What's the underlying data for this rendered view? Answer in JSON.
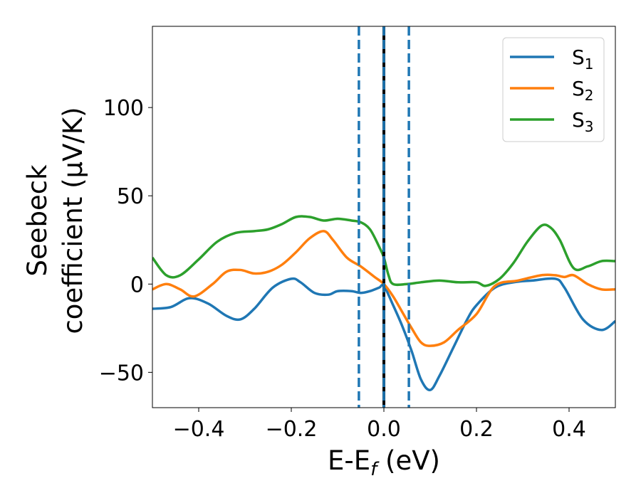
{
  "chart_data": {
    "type": "line",
    "xlabel": "E-E",
    "xlabel_sub": "f",
    "xlabel_unit": " (eV)",
    "ylabel_line1": "Seebeck",
    "ylabel_line2": "coefficient  (μV/K)",
    "xlim": [
      -0.5,
      0.5
    ],
    "ylim": [
      -70,
      146
    ],
    "xticks": [
      -0.4,
      -0.2,
      0.0,
      0.2,
      0.4
    ],
    "xtick_labels": [
      "−0.4",
      "−0.2",
      "0.0",
      "0.2",
      "0.4"
    ],
    "yticks": [
      -50,
      0,
      50,
      100
    ],
    "ytick_labels": [
      "−50",
      "0",
      "50",
      "100"
    ],
    "legend_position": "top-right",
    "vlines": [
      {
        "x": -0.054,
        "style": "dashed",
        "color": "#1f77b4"
      },
      {
        "x": 0.0,
        "style": "solid",
        "color": "#000000"
      },
      {
        "x": 0.0,
        "style": "dashed",
        "color": "#1f77b4"
      },
      {
        "x": 0.054,
        "style": "dashed",
        "color": "#1f77b4"
      }
    ],
    "series": [
      {
        "name": "S",
        "sub": "1",
        "color": "#1f77b4",
        "x": [
          -0.5,
          -0.46,
          -0.42,
          -0.38,
          -0.34,
          -0.31,
          -0.28,
          -0.24,
          -0.2,
          -0.18,
          -0.15,
          -0.12,
          -0.1,
          -0.07,
          -0.05,
          -0.03,
          -0.01,
          0.0,
          0.02,
          0.04,
          0.06,
          0.08,
          0.1,
          0.12,
          0.15,
          0.18,
          0.2,
          0.24,
          0.28,
          0.32,
          0.37,
          0.39,
          0.43,
          0.47,
          0.5
        ],
        "y": [
          -14,
          -13,
          -8,
          -11,
          -18,
          -20,
          -14,
          -2,
          3,
          1,
          -5,
          -6,
          -4,
          -4,
          -5,
          -4,
          -2,
          -1,
          -12,
          -24,
          -38,
          -54,
          -60,
          -52,
          -36,
          -20,
          -12,
          -2,
          1,
          2,
          3,
          -2,
          -20,
          -26,
          -21
        ]
      },
      {
        "name": "S",
        "sub": "2",
        "color": "#ff7f0e",
        "x": [
          -0.5,
          -0.47,
          -0.44,
          -0.41,
          -0.37,
          -0.34,
          -0.31,
          -0.28,
          -0.25,
          -0.22,
          -0.19,
          -0.16,
          -0.13,
          -0.11,
          -0.08,
          -0.05,
          -0.02,
          0.0,
          0.02,
          0.04,
          0.06,
          0.08,
          0.1,
          0.13,
          0.16,
          0.2,
          0.24,
          0.29,
          0.34,
          0.37,
          0.39,
          0.41,
          0.44,
          0.47,
          0.5
        ],
        "y": [
          -3,
          0,
          -3,
          -7,
          0,
          7,
          8,
          6,
          7,
          11,
          18,
          26,
          30,
          25,
          15,
          10,
          4,
          0,
          -7,
          -16,
          -25,
          -33,
          -35,
          -33,
          -26,
          -17,
          -1,
          2,
          5,
          5,
          4,
          5,
          0,
          -3,
          -3
        ]
      },
      {
        "name": "S",
        "sub": "3",
        "color": "#2ca02c",
        "x": [
          -0.5,
          -0.47,
          -0.44,
          -0.4,
          -0.36,
          -0.32,
          -0.28,
          -0.25,
          -0.22,
          -0.19,
          -0.16,
          -0.13,
          -0.1,
          -0.07,
          -0.05,
          -0.03,
          -0.01,
          0.0,
          0.01,
          0.02,
          0.05,
          0.08,
          0.12,
          0.16,
          0.2,
          0.22,
          0.25,
          0.28,
          0.31,
          0.34,
          0.36,
          0.38,
          0.41,
          0.44,
          0.47,
          0.5
        ],
        "y": [
          15,
          5,
          5,
          14,
          24,
          29,
          30,
          31,
          34,
          38,
          38,
          36,
          37,
          36,
          35,
          31,
          21,
          15,
          5,
          0,
          0,
          1,
          2,
          1,
          1,
          -1,
          3,
          12,
          24,
          33,
          32,
          25,
          9,
          10,
          13,
          13
        ]
      }
    ]
  }
}
